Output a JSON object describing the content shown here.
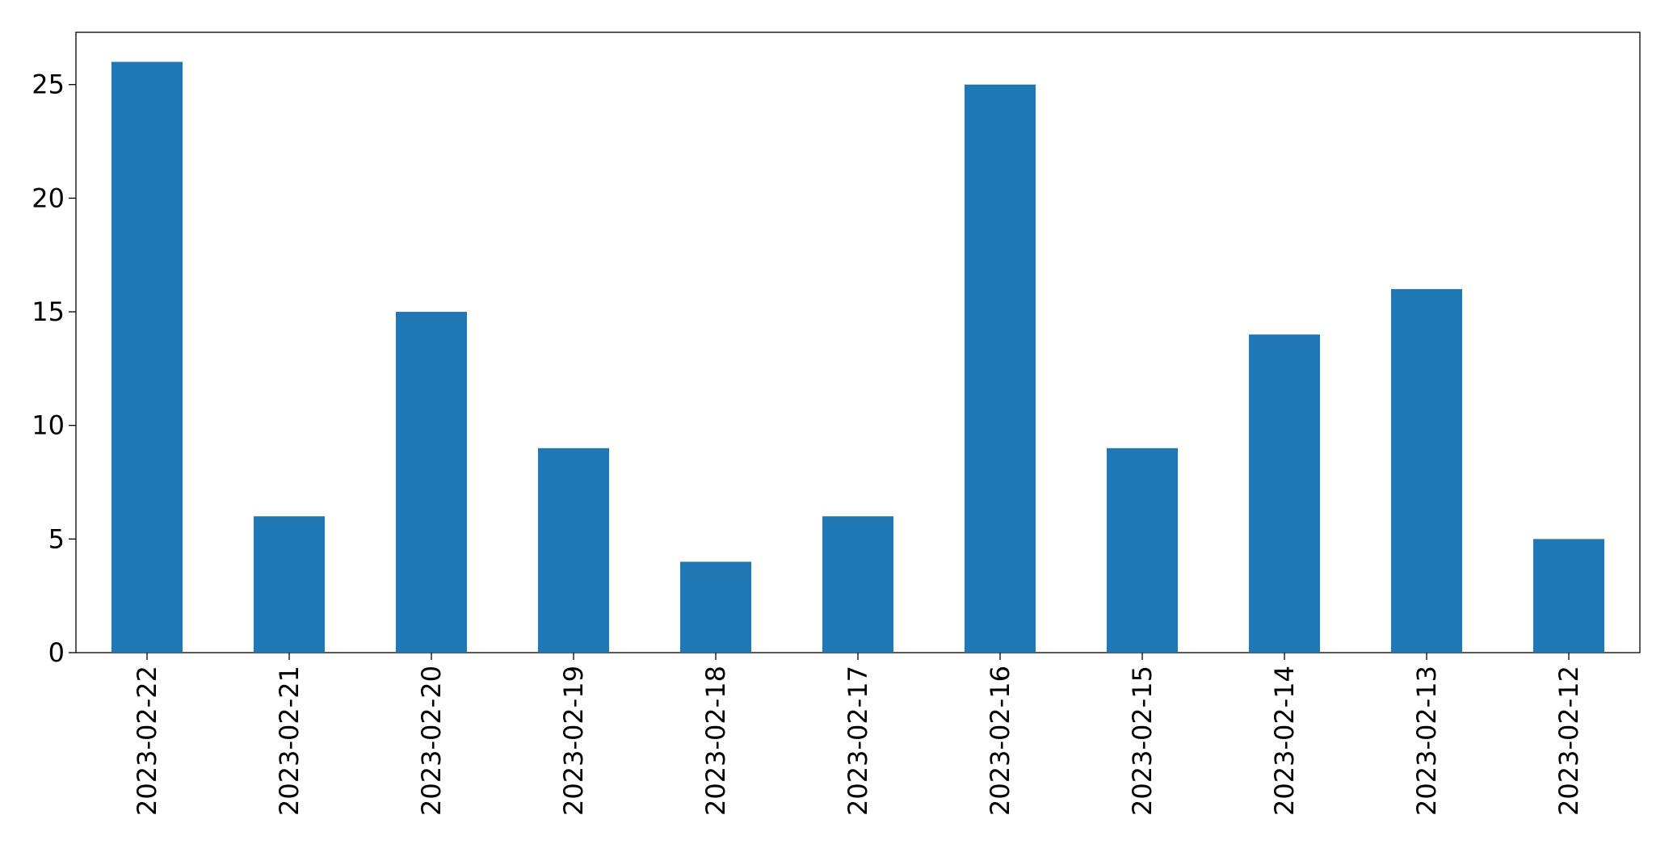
{
  "chart_data": {
    "type": "bar",
    "categories": [
      "2023-02-22",
      "2023-02-21",
      "2023-02-20",
      "2023-02-19",
      "2023-02-18",
      "2023-02-17",
      "2023-02-16",
      "2023-02-15",
      "2023-02-14",
      "2023-02-13",
      "2023-02-12"
    ],
    "values": [
      26,
      6,
      15,
      9,
      4,
      6,
      25,
      9,
      14,
      16,
      5
    ],
    "color": "#1f77b4",
    "ylim": [
      0,
      27.3
    ],
    "yticks": [
      0,
      5,
      10,
      15,
      20,
      25
    ],
    "grid": false
  }
}
